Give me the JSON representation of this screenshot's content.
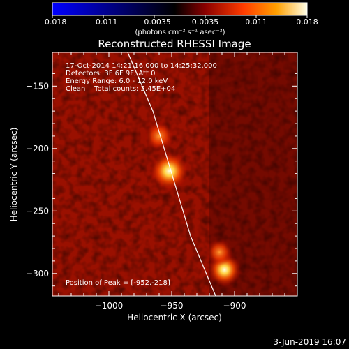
{
  "colorbar": {
    "tick_labels": [
      "−0.018",
      "−0.011",
      "−0.0035",
      "0.0035",
      "0.011",
      "0.018"
    ],
    "units": "(photons cm⁻² s⁻¹ asec⁻²)",
    "range": [
      -0.018,
      0.018
    ],
    "colors": [
      "#0000ff",
      "#000000",
      "#7a0000",
      "#ff4a00",
      "#ffb000",
      "#ffffe0"
    ]
  },
  "chart_data": {
    "type": "heatmap",
    "title": "Reconstructed RHESSI Image",
    "xlabel": "Heliocentric X (arcsec)",
    "ylabel": "Heliocentric Y (arcsec)",
    "xlim": [
      -1045,
      -850
    ],
    "ylim": [
      -318,
      -123
    ],
    "x_ticks": [
      -1000,
      -950,
      -900
    ],
    "x_tick_labels": [
      "−1000",
      "−950",
      "−900"
    ],
    "y_ticks": [
      -150,
      -200,
      -250,
      -300
    ],
    "y_tick_labels": [
      "−150",
      "−200",
      "−250",
      "−300"
    ],
    "sources": [
      {
        "x": -952,
        "y": -218,
        "peak": 0.018
      },
      {
        "x": -960,
        "y": -190,
        "peak": 0.011
      },
      {
        "x": -908,
        "y": -297,
        "peak": 0.014
      },
      {
        "x": -912,
        "y": -283,
        "peak": 0.009
      }
    ],
    "limb": [
      [
        -985,
        -123
      ],
      [
        -965,
        -170
      ],
      [
        -950,
        -220
      ],
      [
        -935,
        -270
      ],
      [
        -915,
        -318
      ]
    ],
    "annotations": [
      "17-Oct-2014 14:21:16.000 to 14:25:32.000",
      "Detectors: 3F 6F 9F, Att 0",
      "Energy Range: 6.0 - 12.0 keV",
      "Clean    Total counts: 2.45E+04"
    ],
    "peak_label": "Position of Peak = [-952,-218]"
  },
  "footer": {
    "date": "3-Jun-2019 16:07"
  }
}
